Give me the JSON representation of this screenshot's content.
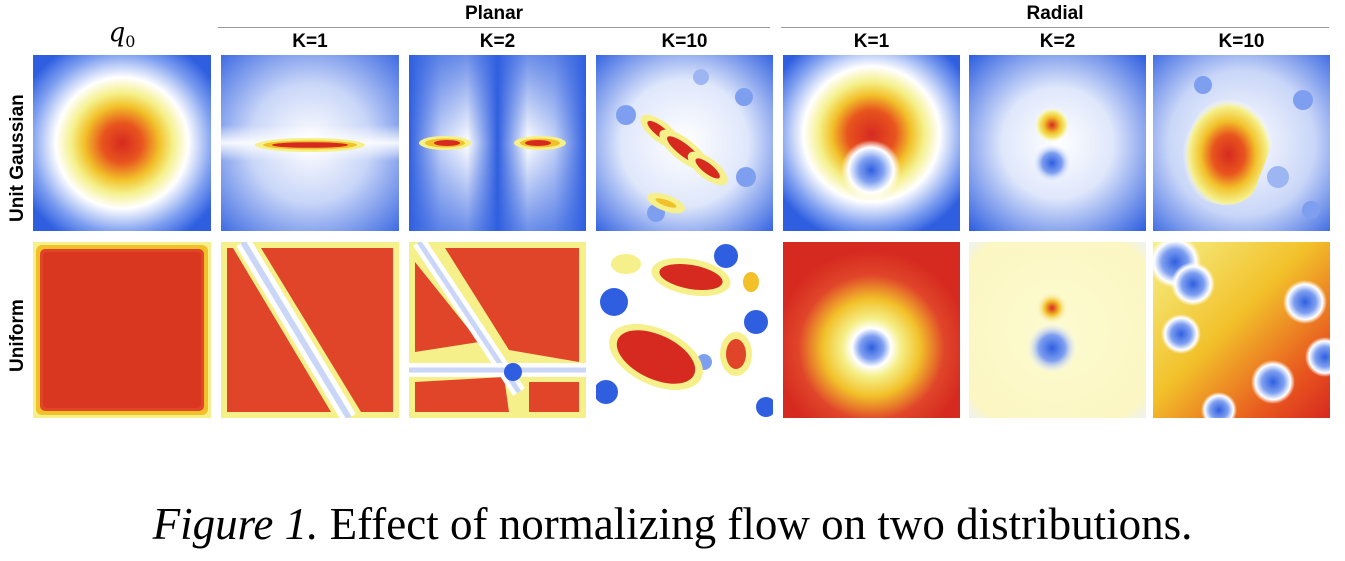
{
  "figure": {
    "q0_label": "q",
    "q0_subscript": "0",
    "groups": [
      {
        "name": "Planar",
        "columns": [
          "K=1",
          "K=2",
          "K=10"
        ]
      },
      {
        "name": "Radial",
        "columns": [
          "K=1",
          "K=2",
          "K=10"
        ]
      }
    ],
    "rows": [
      "Unit Gaussian",
      "Uniform"
    ],
    "colormap": [
      "#2f5fe0",
      "#ffffff",
      "#f5f08a",
      "#f2c12a",
      "#d62a20"
    ]
  },
  "caption": {
    "label": "Figure 1.",
    "text": " Effect of normalizing flow on two distributions."
  }
}
